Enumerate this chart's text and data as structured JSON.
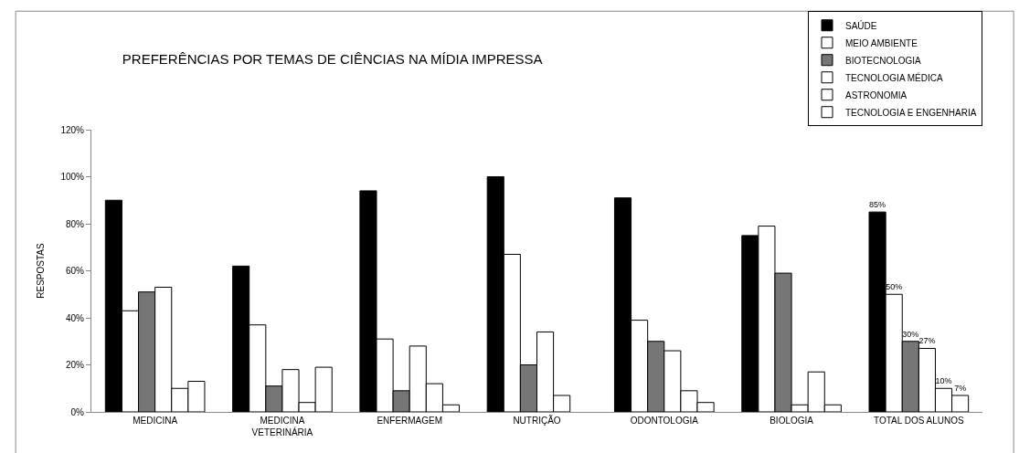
{
  "chart_data": {
    "type": "bar",
    "title": "PREFERÊNCIAS POR TEMAS DE CIÊNCIAS NA MÍDIA IMPRESSA",
    "ylabel": "RESPOSTAS",
    "categories": [
      "MEDICINA",
      "MEDICINA VETERINÁRIA",
      "ENFERMAGEM",
      "NUTRIÇÃO",
      "ODONTOLOGIA",
      "BIOLOGIA",
      "TOTAL DOS ALUNOS"
    ],
    "series": [
      {
        "name": "SAÚDE",
        "color": "#000000",
        "values": [
          0.9,
          0.62,
          0.94,
          1.0,
          0.91,
          0.75,
          0.85
        ],
        "value_labels": [
          null,
          null,
          null,
          null,
          null,
          null,
          "85%"
        ]
      },
      {
        "name": "MEIO AMBIENTE",
        "color": "#ffffff",
        "values": [
          0.43,
          0.37,
          0.31,
          0.67,
          0.39,
          0.79,
          0.5
        ],
        "value_labels": [
          null,
          null,
          null,
          null,
          null,
          null,
          "50%"
        ]
      },
      {
        "name": "BIOTECNOLOGIA",
        "color": "#767676",
        "values": [
          0.51,
          0.11,
          0.09,
          0.2,
          0.3,
          0.59,
          0.3
        ],
        "value_labels": [
          null,
          null,
          null,
          null,
          null,
          null,
          "30%"
        ]
      },
      {
        "name": "TECNOLOGIA MÉDICA",
        "color": "#ffffff",
        "values": [
          0.53,
          0.18,
          0.28,
          0.34,
          0.26,
          0.03,
          0.27
        ],
        "value_labels": [
          null,
          null,
          null,
          null,
          null,
          null,
          "27%"
        ]
      },
      {
        "name": "ASTRONOMIA",
        "color": "#ffffff",
        "values": [
          0.1,
          0.04,
          0.12,
          0.07,
          0.09,
          0.17,
          0.1
        ],
        "value_labels": [
          null,
          null,
          null,
          null,
          null,
          null,
          "10%"
        ]
      },
      {
        "name": "TECNOLOGIA E ENGENHARIA",
        "color": "#ffffff",
        "values": [
          0.13,
          0.19,
          0.03,
          null,
          0.04,
          0.03,
          0.07
        ],
        "value_labels": [
          null,
          null,
          null,
          null,
          null,
          null,
          "7%"
        ]
      }
    ],
    "ylim": [
      0,
      1.2
    ],
    "yticks": [
      {
        "value": 0,
        "label": "0%"
      },
      {
        "value": 0.2,
        "label": "20%"
      },
      {
        "value": 0.4,
        "label": "40%"
      },
      {
        "value": 0.6,
        "label": "60%"
      },
      {
        "value": 0.8,
        "label": "80%"
      },
      {
        "value": 1.0,
        "label": "100%"
      },
      {
        "value": 1.2,
        "label": "120%"
      }
    ],
    "grid": false,
    "legend": "top right"
  }
}
